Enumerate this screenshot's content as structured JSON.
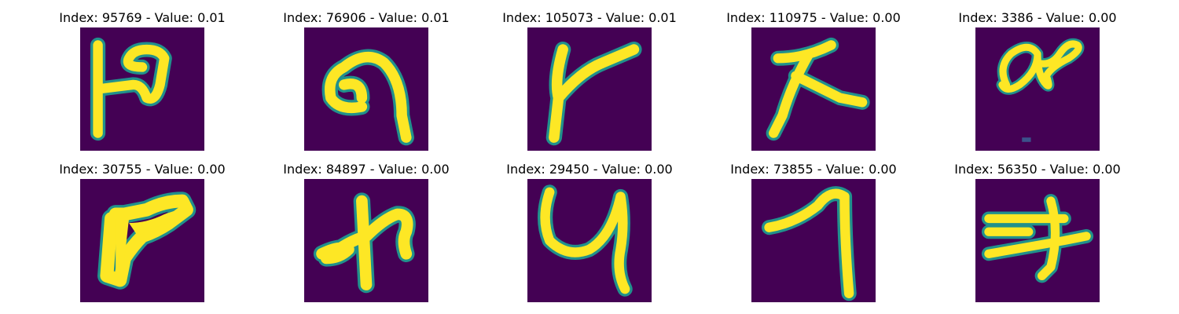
{
  "figure": {
    "panels": [
      {
        "title": "Index: 95769 - Value: 0.01"
      },
      {
        "title": "Index: 76906 - Value: 0.01"
      },
      {
        "title": "Index: 105073 - Value: 0.01"
      },
      {
        "title": "Index: 110975 - Value: 0.00"
      },
      {
        "title": "Index: 3386 - Value: 0.00"
      },
      {
        "title": "Index: 30755 - Value: 0.00"
      },
      {
        "title": "Index: 84897 - Value: 0.00"
      },
      {
        "title": "Index: 29450 - Value: 0.00"
      },
      {
        "title": "Index: 73855 - Value: 0.00"
      },
      {
        "title": "Index: 56350 - Value: 0.00"
      }
    ],
    "colors": {
      "background": "#440154",
      "stroke_outer": "#21918c",
      "stroke_inner": "#fde725"
    }
  }
}
